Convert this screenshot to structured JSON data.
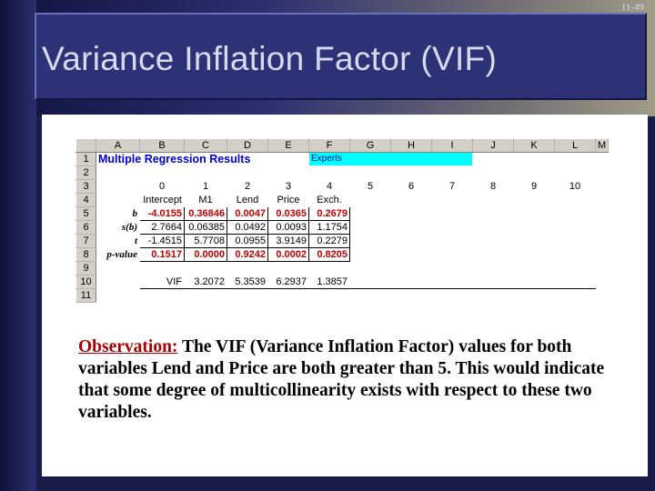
{
  "slide_number": "11-49",
  "title": "Variance Inflation Factor (VIF)",
  "spreadsheet": {
    "column_headers": [
      "A",
      "B",
      "C",
      "D",
      "E",
      "F",
      "G",
      "H",
      "I",
      "J",
      "K",
      "L",
      "M"
    ],
    "row_numbers": [
      "1",
      "2",
      "3",
      "4",
      "5",
      "6",
      "7",
      "8",
      "9",
      "10",
      "11"
    ],
    "results_title": "Multiple Regression Results",
    "expert_label": "Experts",
    "index_row": [
      "0",
      "1",
      "2",
      "3",
      "4",
      "5",
      "6",
      "7",
      "8",
      "9",
      "10"
    ],
    "variable_row": [
      "Intercept",
      "M1",
      "Lend",
      "Price",
      "Exch."
    ],
    "stats": [
      {
        "label": "b",
        "values": [
          "-4.0155",
          "0.36846",
          "0.0047",
          "0.0365",
          "0.2679"
        ]
      },
      {
        "label": "s(b)",
        "values": [
          "2.7664",
          "0.06385",
          "0.0492",
          "0.0093",
          "1.1754"
        ]
      },
      {
        "label": "t",
        "values": [
          "-1.4515",
          "5.7708",
          "0.0955",
          "3.9149",
          "0.2279"
        ]
      },
      {
        "label": "p-value",
        "values": [
          "0.1517",
          "0.0000",
          "0.9242",
          "0.0002",
          "0.8205"
        ]
      }
    ],
    "vif_label": "VIF",
    "vif_values": [
      "3.2072",
      "5.3539",
      "6.2937",
      "1.3857"
    ]
  },
  "observation": {
    "label": "Observation:",
    "text": " The VIF (Variance Inflation Factor) values for both variables Lend and Price are both greater than 5.  This would indicate that some degree of multicollinearity exists with respect to these two variables."
  }
}
